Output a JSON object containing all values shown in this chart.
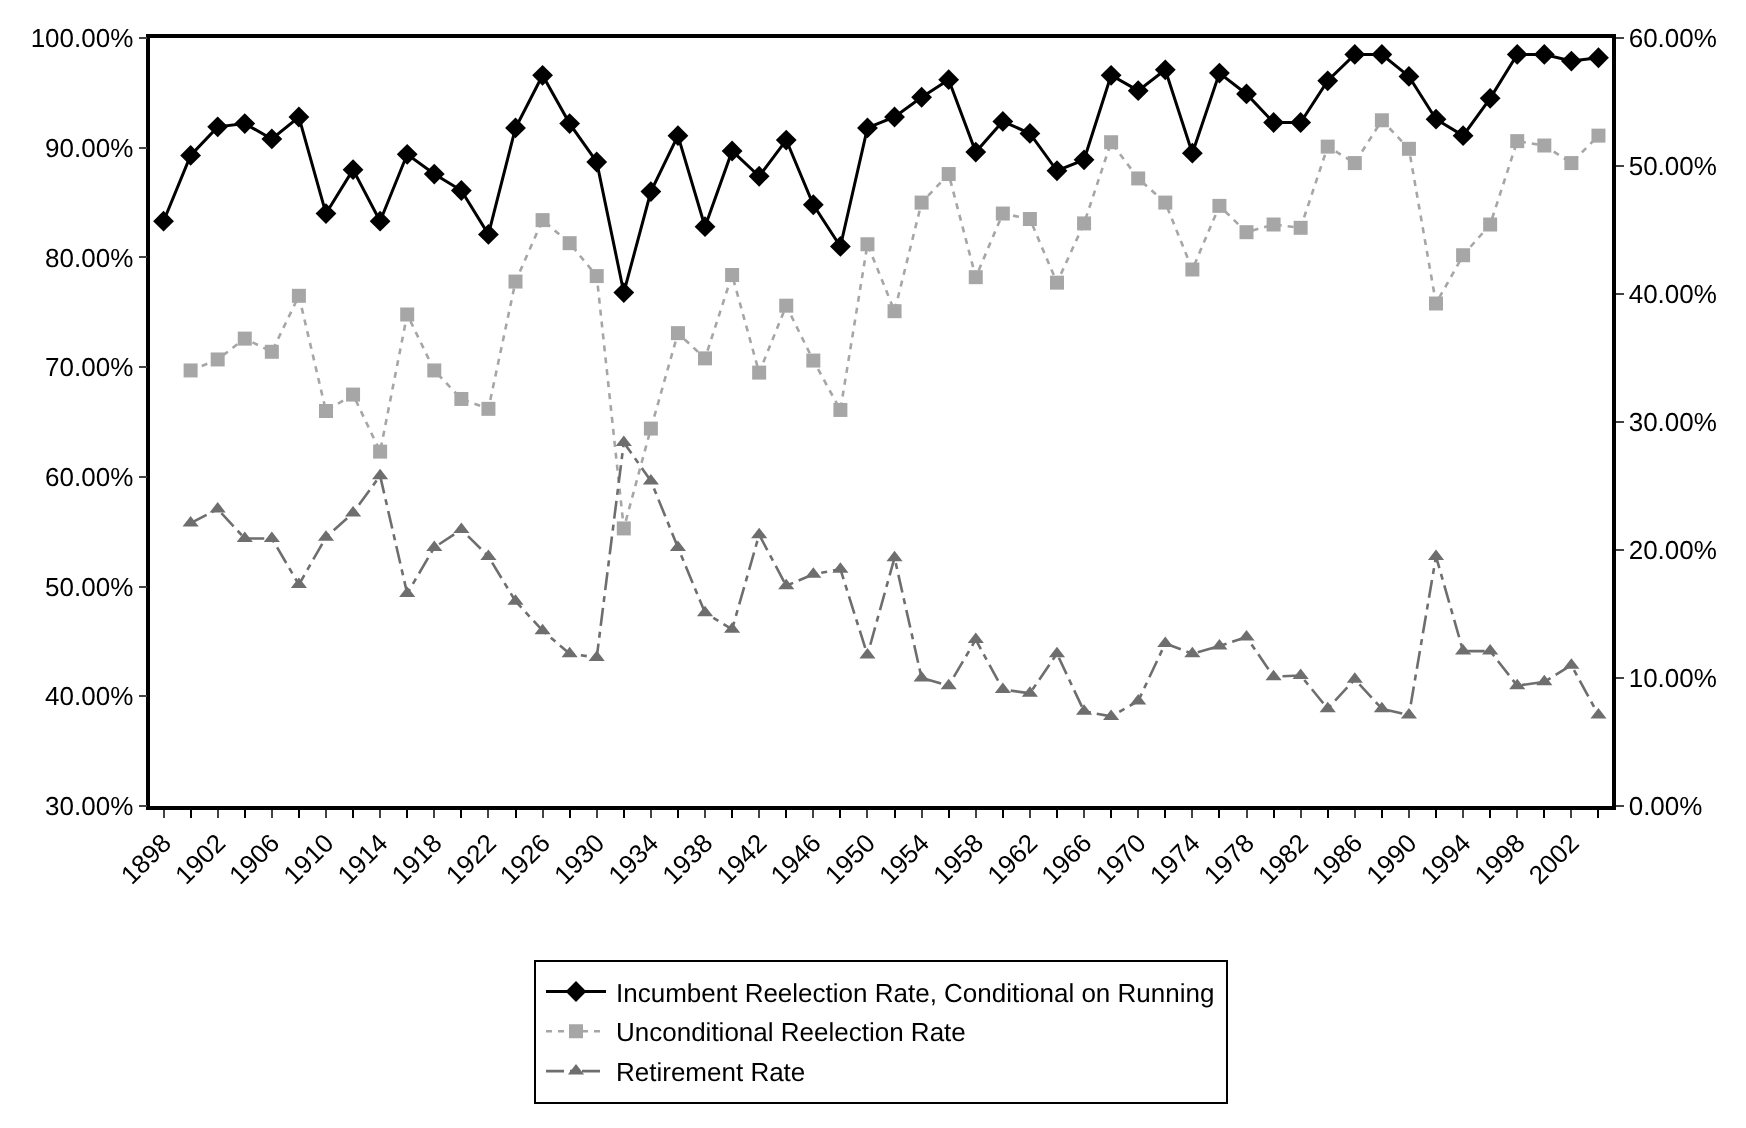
{
  "chart_data": {
    "type": "line",
    "categories": [
      "1898",
      null,
      "1902",
      null,
      "1906",
      null,
      "1910",
      null,
      "1914",
      null,
      "1918",
      null,
      "1922",
      null,
      "1926",
      null,
      "1930",
      null,
      "1934",
      null,
      "1938",
      null,
      "1942",
      null,
      "1946",
      null,
      "1950",
      null,
      "1954",
      null,
      "1958",
      null,
      "1962",
      null,
      "1966",
      null,
      "1970",
      null,
      "1974",
      null,
      "1978",
      null,
      "1982",
      null,
      "1986",
      null,
      "1990",
      null,
      "1994",
      null,
      "1998",
      null,
      "2002",
      null
    ],
    "series": [
      {
        "name": "Incumbent Reelection Rate, Conditional on Running",
        "color": "#000000",
        "marker": "diamond",
        "line_style": "solid",
        "values": [
          83.3,
          89.3,
          91.9,
          92.2,
          90.8,
          92.8,
          84.0,
          88.0,
          83.3,
          89.4,
          87.6,
          86.1,
          82.1,
          91.8,
          96.6,
          92.2,
          88.7,
          76.8,
          86.0,
          91.1,
          82.8,
          89.7,
          87.4,
          90.7,
          84.8,
          81.0,
          91.8,
          92.8,
          94.6,
          96.2,
          89.6,
          92.4,
          91.3,
          87.9,
          88.9,
          96.6,
          95.2,
          97.1,
          89.5,
          96.8,
          94.9,
          92.3,
          92.3,
          96.1,
          98.5,
          98.5,
          96.5,
          92.6,
          91.1,
          94.5,
          98.5,
          98.5,
          97.9,
          98.2
        ]
      },
      {
        "name": "Unconditional Reelection Rate",
        "color": "#a6a6a6",
        "marker": "square",
        "line_style": "dotted",
        "values": [
          null,
          69.7,
          70.7,
          72.6,
          71.4,
          76.5,
          66.0,
          67.5,
          62.3,
          74.8,
          69.7,
          67.1,
          66.2,
          77.8,
          83.4,
          81.3,
          78.3,
          55.3,
          64.4,
          73.1,
          70.8,
          78.4,
          69.5,
          75.6,
          70.6,
          66.1,
          81.2,
          75.1,
          85.0,
          87.6,
          78.2,
          84.0,
          83.5,
          77.7,
          83.1,
          90.5,
          87.2,
          85.0,
          78.9,
          84.7,
          82.3,
          83.0,
          82.7,
          90.1,
          88.6,
          92.5,
          89.9,
          75.8,
          80.2,
          83.0,
          90.6,
          90.2,
          88.6,
          91.1
        ]
      },
      {
        "name": "Retirement Rate",
        "color": "#6e6e6e",
        "marker": "triangle",
        "line_style": "dashed",
        "axis": "y2",
        "values": [
          null,
          22.1,
          23.2,
          20.9,
          20.9,
          17.3,
          21.0,
          22.9,
          25.8,
          16.6,
          20.2,
          21.6,
          19.5,
          16.0,
          13.7,
          11.9,
          11.6,
          28.4,
          25.4,
          20.2,
          15.1,
          13.8,
          21.2,
          17.2,
          18.1,
          18.5,
          11.8,
          19.4,
          10.0,
          9.4,
          13.0,
          9.1,
          8.8,
          11.9,
          7.4,
          7.0,
          8.2,
          12.7,
          11.9,
          12.5,
          13.2,
          10.1,
          10.2,
          7.6,
          9.9,
          7.6,
          7.1,
          19.5,
          12.1,
          12.1,
          9.4,
          9.7,
          11.0,
          7.1
        ]
      }
    ],
    "ylim": [
      30,
      100
    ],
    "yticks": [
      {
        "value": 30,
        "label": "30.00%"
      },
      {
        "value": 40,
        "label": "40.00%"
      },
      {
        "value": 50,
        "label": "50.00%"
      },
      {
        "value": 60,
        "label": "60.00%"
      },
      {
        "value": 70,
        "label": "70.00%"
      },
      {
        "value": 80,
        "label": "80.00%"
      },
      {
        "value": 90,
        "label": "90.00%"
      },
      {
        "value": 100,
        "label": "100.00%"
      }
    ],
    "y2lim": [
      0,
      60
    ],
    "y2ticks": [
      {
        "value": 0,
        "label": "0.00%"
      },
      {
        "value": 10,
        "label": "10.00%"
      },
      {
        "value": 20,
        "label": "20.00%"
      },
      {
        "value": 30,
        "label": "30.00%"
      },
      {
        "value": 40,
        "label": "40.00%"
      },
      {
        "value": 50,
        "label": "50.00%"
      },
      {
        "value": 60,
        "label": "60.00%"
      }
    ],
    "legend": "bottom"
  }
}
